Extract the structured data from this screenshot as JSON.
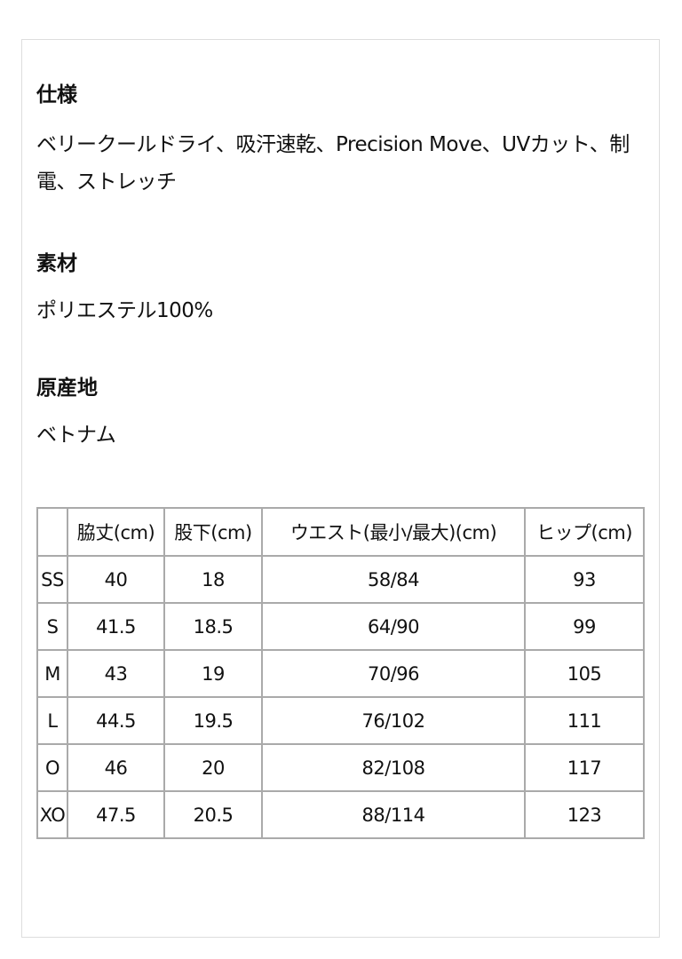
{
  "sections": [
    {
      "heading": "仕様",
      "body": "ベリークールドライ、吸汗速乾、Precision Move、UVカット、制電、ストレッチ"
    },
    {
      "heading": "素材",
      "body": "ポリエステル100%"
    },
    {
      "heading": "原産地",
      "body": "ベトナム"
    }
  ],
  "size_table": {
    "headers": [
      "",
      "脇丈(cm)",
      "股下(cm)",
      "ウエスト(最小/最大)(cm)",
      "ヒップ(cm)"
    ],
    "rows": [
      [
        "SS",
        "40",
        "18",
        "58/84",
        "93"
      ],
      [
        "S",
        "41.5",
        "18.5",
        "64/90",
        "99"
      ],
      [
        "M",
        "43",
        "19",
        "70/96",
        "105"
      ],
      [
        "L",
        "44.5",
        "19.5",
        "76/102",
        "111"
      ],
      [
        "O",
        "46",
        "20",
        "82/108",
        "117"
      ],
      [
        "XO",
        "47.5",
        "20.5",
        "88/114",
        "123"
      ]
    ]
  }
}
